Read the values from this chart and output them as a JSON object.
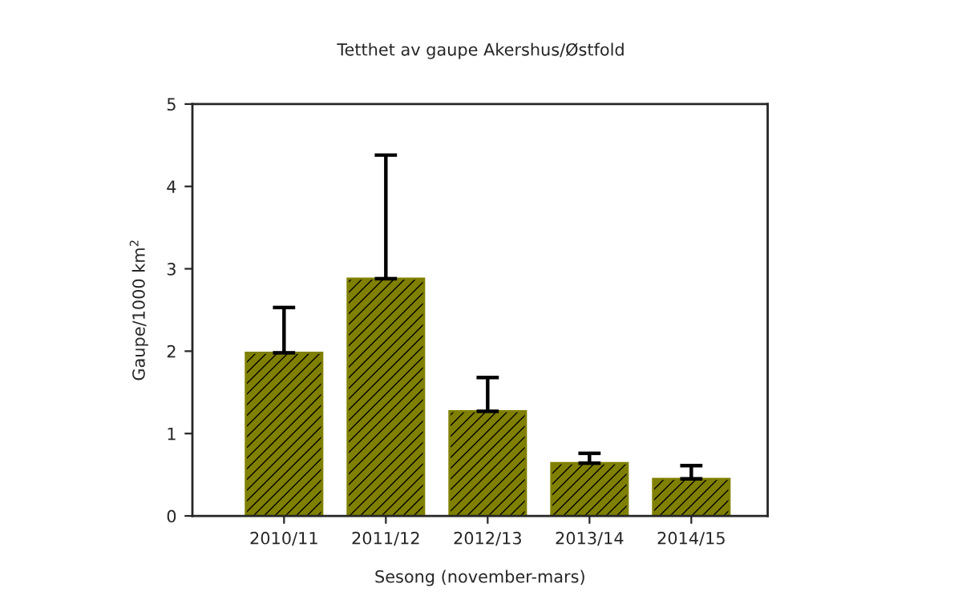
{
  "chart_data": {
    "type": "bar",
    "title": "Tetthet av gaupe Akershus/Østfold",
    "xlabel": "Sesong (november-mars)",
    "ylabel": "Gaupe/1000 km$^{2}$",
    "categories": [
      "2010/11",
      "2011/12",
      "2012/13",
      "2013/14",
      "2014/15"
    ],
    "series": [
      {
        "color": "#808000",
        "values": [
          1.98,
          2.88,
          1.27,
          0.64,
          0.45
        ],
        "errors": [
          [
            1.98,
            2.53
          ],
          [
            2.88,
            4.38
          ],
          [
            1.27,
            1.68
          ],
          [
            0.64,
            0.76
          ],
          [
            0.45,
            0.61
          ]
        ]
      }
    ],
    "ylim": [
      0,
      5
    ],
    "yticks": [
      0,
      1,
      2,
      3,
      4,
      5
    ],
    "grid": false,
    "legend": false
  }
}
